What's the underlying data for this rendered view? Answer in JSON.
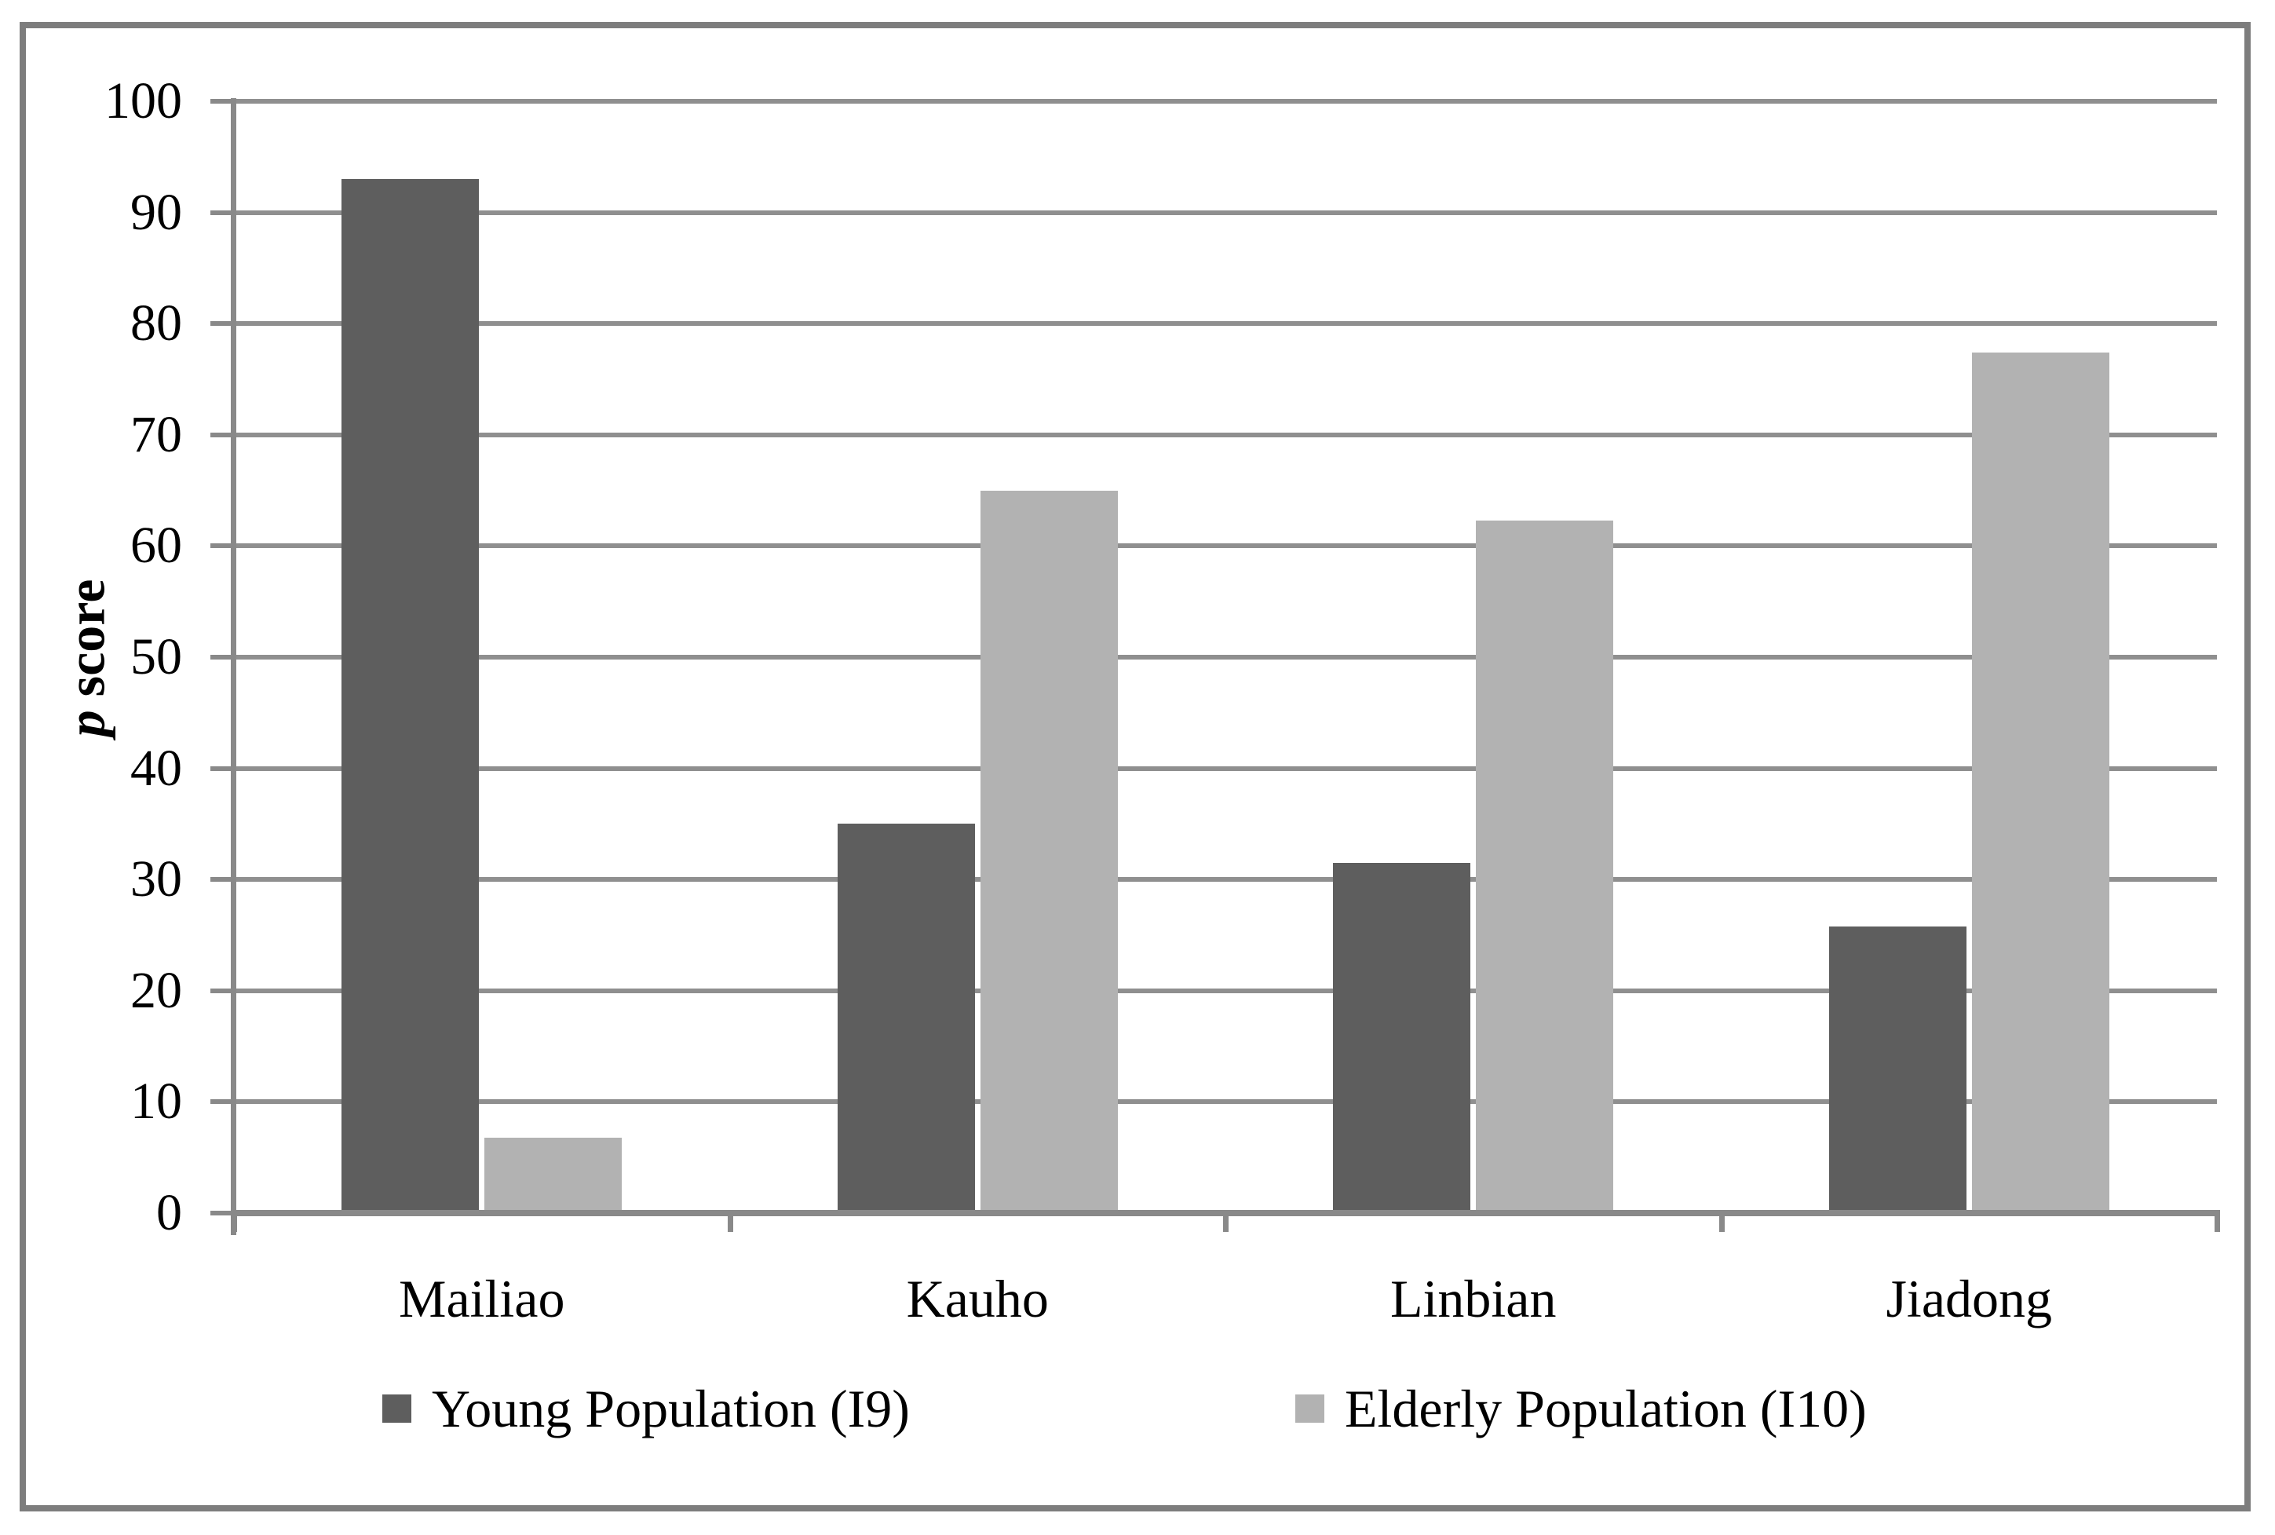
{
  "figure": {
    "y_axis_title_italic": "p",
    "y_axis_title_rest": " score"
  },
  "legend": {
    "items": [
      {
        "label": "Young Population (I9)",
        "color": "#5e5e5e"
      },
      {
        "label": "Elderly Population (I10)",
        "color": "#b2b2b2"
      }
    ]
  },
  "chart_data": {
    "type": "bar",
    "title": "",
    "categories": [
      "Mailiao",
      "Kauho",
      "Linbian",
      "Jiadong"
    ],
    "series": [
      {
        "name": "Young Population (I9)",
        "color": "#5e5e5e",
        "values": [
          93,
          35,
          31.5,
          25.8
        ]
      },
      {
        "name": "Elderly Population (I10)",
        "color": "#b2b2b2",
        "values": [
          6.8,
          65,
          62.3,
          77.4
        ]
      }
    ],
    "xlabel": "",
    "ylabel": "p score",
    "ylim": [
      0,
      100
    ],
    "yticks": [
      0,
      10,
      20,
      30,
      40,
      50,
      60,
      70,
      80,
      90,
      100
    ],
    "grid": true,
    "legend_position": "bottom",
    "colors": {
      "gridline": "#8f8f8f",
      "axis": "#898989",
      "border": "#7d7d7d",
      "background": "#ffffff"
    }
  }
}
